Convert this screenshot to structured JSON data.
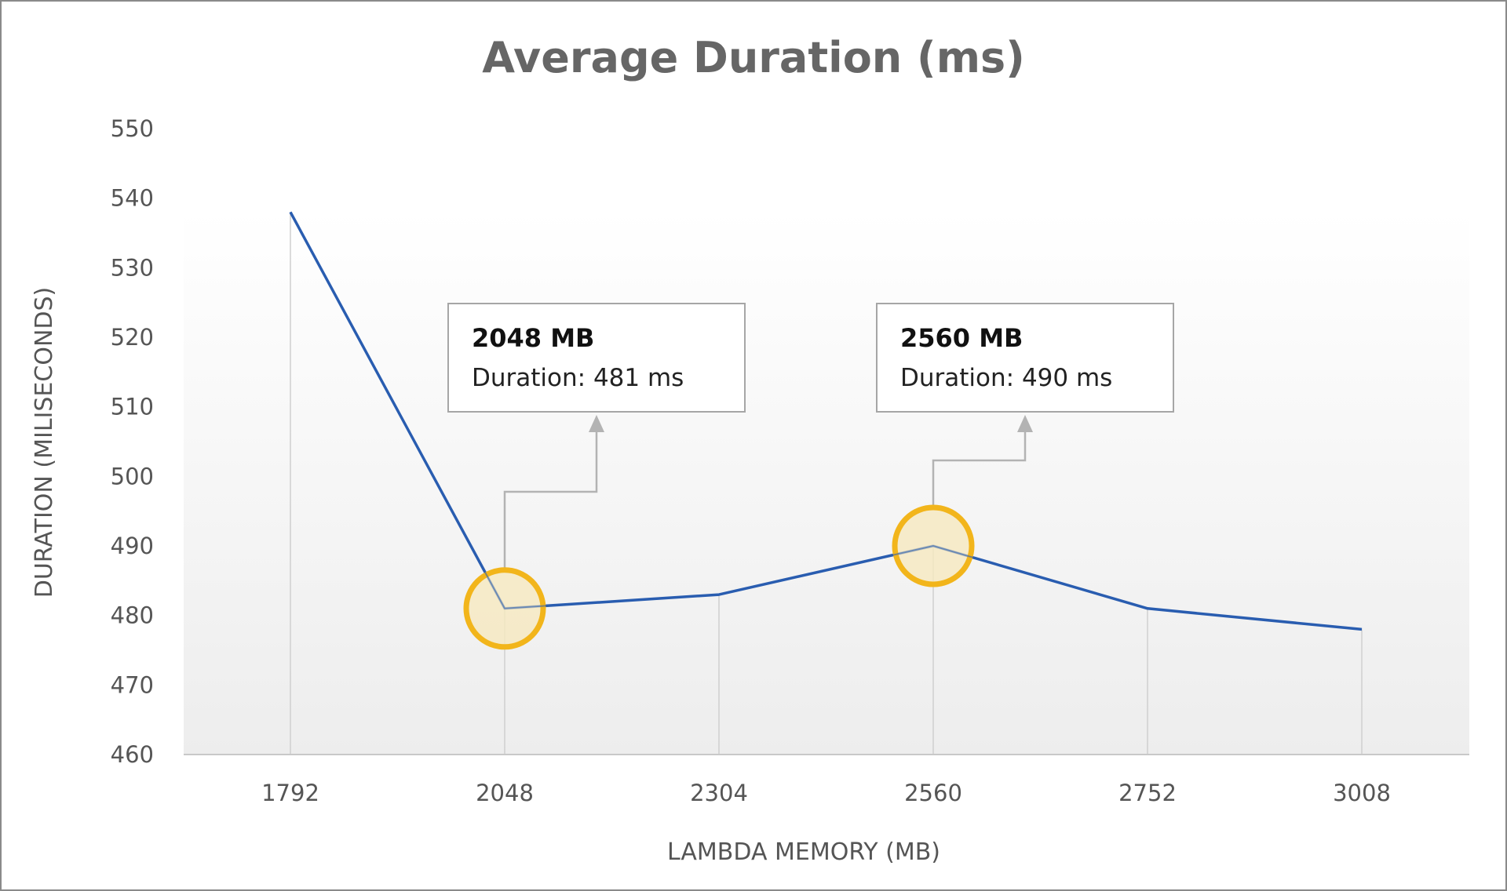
{
  "chart_data": {
    "type": "line",
    "title": "Average Duration  (ms)",
    "xlabel": "LAMBDA MEMORY (MB)",
    "ylabel": "DURATION (MILISECONDS)",
    "categories": [
      "1792",
      "2048",
      "2304",
      "2560",
      "2752",
      "3008"
    ],
    "series": [
      {
        "values": [
          538,
          481,
          483,
          490,
          481,
          478
        ]
      }
    ],
    "ylim": [
      460,
      550
    ],
    "yticks": [
      460,
      470,
      480,
      490,
      500,
      510,
      520,
      530,
      540,
      550
    ],
    "grid": "vertical drop lines",
    "annotations": [
      {
        "category_index": 1,
        "title": "2048 MB",
        "text": "Duration: 481 ms"
      },
      {
        "category_index": 3,
        "title": "2560 MB",
        "text": "Duration: 490 ms"
      }
    ]
  },
  "colors": {
    "line": "#2a5db0",
    "highlight_stroke": "#f2b51b",
    "highlight_fill": "#f6e9bf",
    "droplines": "#cfcfcf",
    "callout_border": "#a6a6a6",
    "connector": "#b3b3b3"
  }
}
